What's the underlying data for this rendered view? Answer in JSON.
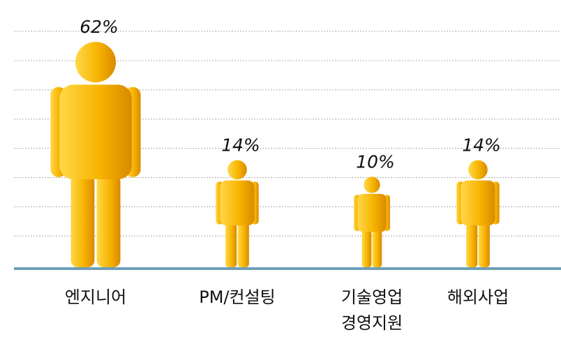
{
  "chart_data": {
    "type": "pictograph",
    "categories": [
      "엔지니어",
      "PM/컨설팅",
      [
        "기술영업",
        "경영지원"
      ],
      "해외사업"
    ],
    "values": [
      62,
      14,
      10,
      14
    ],
    "value_labels": [
      "62%",
      "14%",
      "10%",
      "14%"
    ],
    "color": "#f5b000"
  }
}
